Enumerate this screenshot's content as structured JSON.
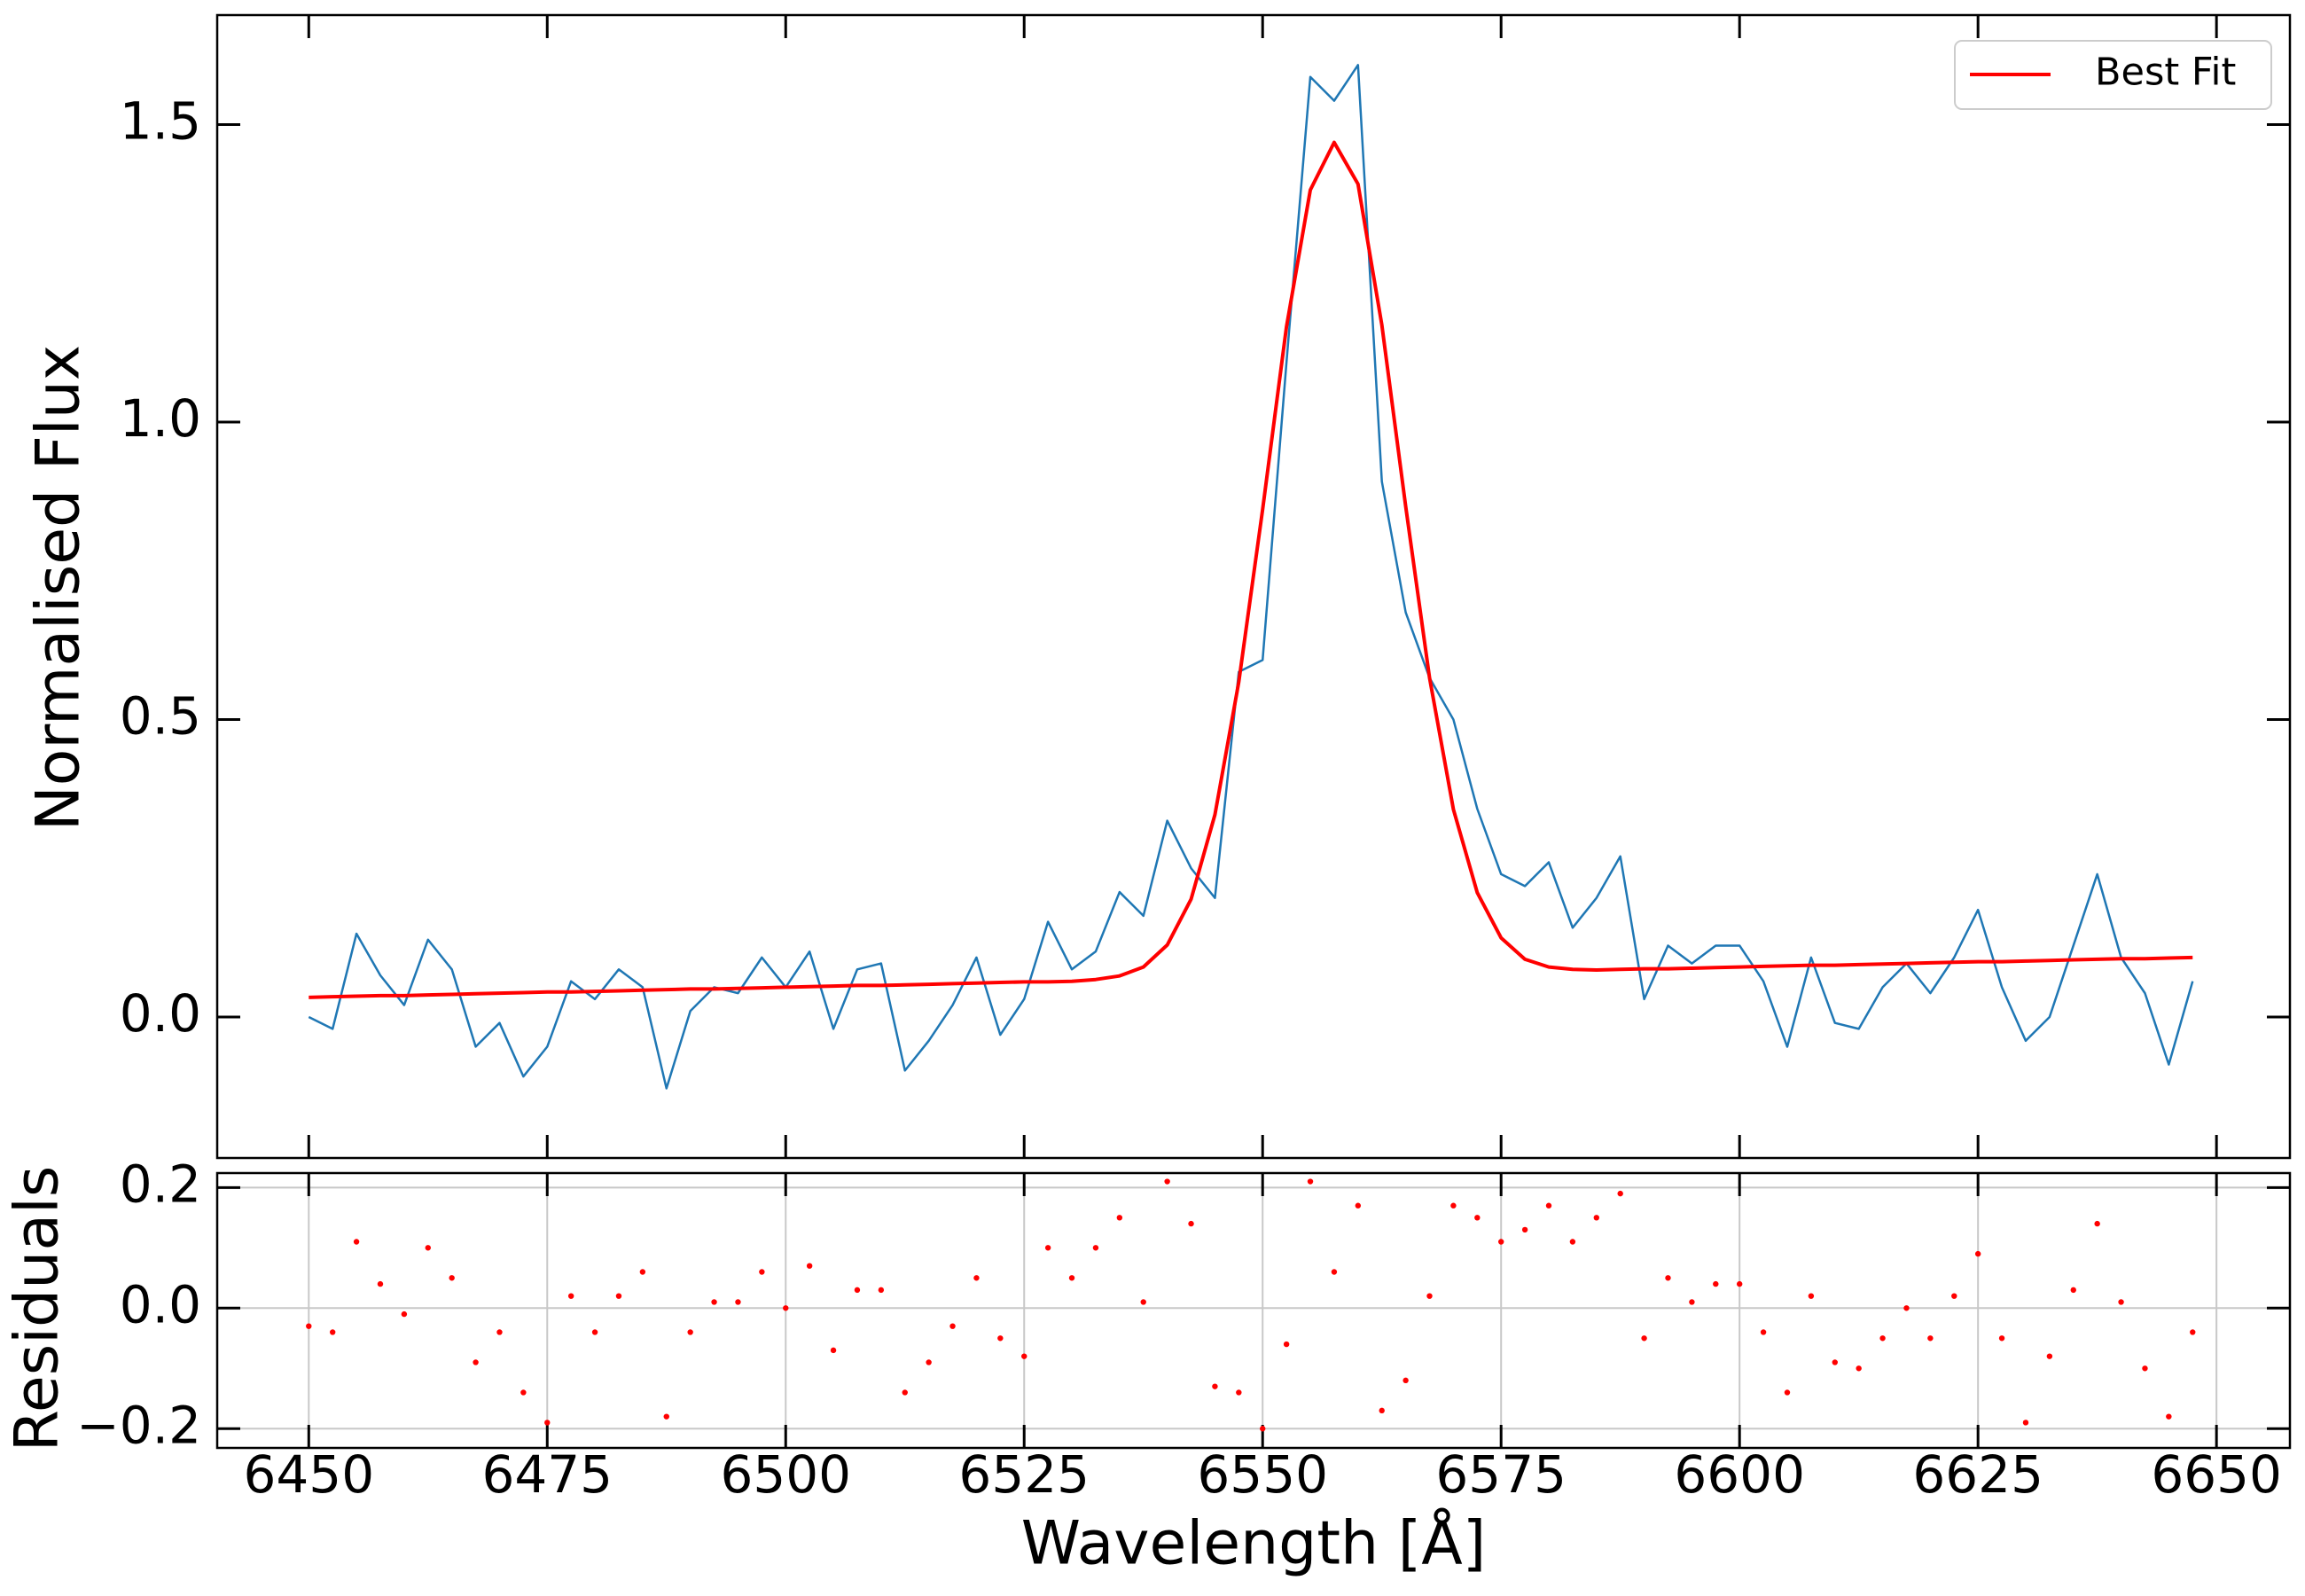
{
  "chart_data": [
    {
      "type": "line",
      "ylabel": "Normalised Flux",
      "x": [
        6450,
        6452.5,
        6455,
        6457.5,
        6460,
        6462.5,
        6465,
        6467.5,
        6470,
        6472.5,
        6475,
        6477.5,
        6480,
        6482.5,
        6485,
        6487.5,
        6490,
        6492.5,
        6495,
        6497.5,
        6500,
        6502.5,
        6505,
        6507.5,
        6510,
        6512.5,
        6515,
        6517.5,
        6520,
        6522.5,
        6525,
        6527.5,
        6530,
        6532.5,
        6535,
        6537.5,
        6540,
        6542.5,
        6545,
        6547.5,
        6550,
        6552.5,
        6555,
        6557.5,
        6560,
        6562.5,
        6565,
        6567.5,
        6570,
        6572.5,
        6575,
        6577.5,
        6580,
        6582.5,
        6585,
        6587.5,
        6590,
        6592.5,
        6595,
        6597.5,
        6600,
        6602.5,
        6605,
        6607.5,
        6610,
        6612.5,
        6615,
        6617.5,
        6620,
        6622.5,
        6625,
        6627.5,
        6630,
        6632.5,
        6635,
        6637.5,
        6640,
        6642.5,
        6645,
        6647.5
      ],
      "series": [
        {
          "color": "#1f77b4",
          "values": [
            0.0,
            -0.02,
            0.14,
            0.07,
            0.02,
            0.13,
            0.08,
            -0.05,
            -0.01,
            -0.1,
            -0.05,
            0.06,
            0.03,
            0.08,
            0.05,
            -0.12,
            0.01,
            0.05,
            0.04,
            0.1,
            0.05,
            0.11,
            -0.02,
            0.08,
            0.09,
            -0.09,
            -0.04,
            0.02,
            0.1,
            -0.03,
            0.03,
            0.16,
            0.08,
            0.11,
            0.21,
            0.17,
            0.33,
            0.25,
            0.2,
            0.58,
            0.6,
            1.1,
            1.58,
            1.54,
            1.6,
            0.9,
            0.68,
            0.57,
            0.5,
            0.35,
            0.24,
            0.22,
            0.26,
            0.15,
            0.2,
            0.27,
            0.03,
            0.12,
            0.09,
            0.12,
            0.12,
            0.06,
            -0.05,
            0.1,
            -0.01,
            -0.02,
            0.05,
            0.09,
            0.04,
            0.1,
            0.18,
            0.05,
            -0.04,
            0.0,
            0.12,
            0.24,
            0.1,
            0.04,
            -0.08,
            0.06
          ]
        },
        {
          "name": "Best Fit",
          "color": "#ff0000",
          "values": [
            0.033,
            0.034,
            0.035,
            0.036,
            0.036,
            0.037,
            0.038,
            0.039,
            0.04,
            0.041,
            0.042,
            0.042,
            0.043,
            0.044,
            0.045,
            0.046,
            0.047,
            0.047,
            0.048,
            0.049,
            0.05,
            0.051,
            0.052,
            0.053,
            0.053,
            0.054,
            0.055,
            0.056,
            0.057,
            0.058,
            0.059,
            0.059,
            0.06,
            0.063,
            0.069,
            0.084,
            0.121,
            0.198,
            0.34,
            0.563,
            0.853,
            1.16,
            1.39,
            1.47,
            1.4,
            1.163,
            0.858,
            0.57,
            0.349,
            0.209,
            0.133,
            0.097,
            0.084,
            0.08,
            0.079,
            0.08,
            0.081,
            0.081,
            0.082,
            0.083,
            0.084,
            0.085,
            0.086,
            0.087,
            0.087,
            0.088,
            0.089,
            0.09,
            0.091,
            0.092,
            0.093,
            0.093,
            0.094,
            0.095,
            0.096,
            0.097,
            0.098,
            0.098,
            0.099,
            0.1
          ]
        }
      ],
      "xlim": [
        6440.4,
        6657.7
      ],
      "ylim": [
        -0.237,
        1.684
      ],
      "yticks": [
        {
          "value": 0,
          "label": "0.0"
        },
        0.5,
        {
          "value": 1,
          "label": "1.0"
        },
        1.5
      ],
      "legend": "upper right"
    },
    {
      "type": "scatter",
      "xlabel": "Wavelength [Å]",
      "ylabel": "Residuals",
      "x": [
        6450,
        6452.5,
        6455,
        6457.5,
        6460,
        6462.5,
        6465,
        6467.5,
        6470,
        6472.5,
        6475,
        6477.5,
        6480,
        6482.5,
        6485,
        6487.5,
        6490,
        6492.5,
        6495,
        6497.5,
        6500,
        6502.5,
        6505,
        6507.5,
        6510,
        6512.5,
        6515,
        6517.5,
        6520,
        6522.5,
        6525,
        6527.5,
        6530,
        6532.5,
        6535,
        6537.5,
        6540,
        6542.5,
        6545,
        6547.5,
        6550,
        6552.5,
        6555,
        6557.5,
        6560,
        6562.5,
        6565,
        6567.5,
        6570,
        6572.5,
        6575,
        6577.5,
        6580,
        6582.5,
        6585,
        6587.5,
        6590,
        6592.5,
        6595,
        6597.5,
        6600,
        6602.5,
        6605,
        6607.5,
        6610,
        6612.5,
        6615,
        6617.5,
        6620,
        6622.5,
        6625,
        6627.5,
        6630,
        6632.5,
        6635,
        6637.5,
        6640,
        6642.5,
        6645,
        6647.5
      ],
      "series": [
        {
          "color": "#ff0000",
          "values": [
            -0.03,
            -0.04,
            0.11,
            0.04,
            -0.01,
            0.1,
            0.05,
            -0.09,
            -0.04,
            -0.14,
            -0.19,
            0.02,
            -0.04,
            0.02,
            0.06,
            -0.18,
            -0.04,
            0.01,
            0.01,
            0.06,
            0.0,
            0.07,
            -0.07,
            0.03,
            0.03,
            -0.14,
            -0.09,
            -0.03,
            0.05,
            -0.05,
            -0.08,
            0.1,
            0.05,
            0.1,
            0.15,
            0.01,
            0.21,
            0.14,
            -0.13,
            -0.14,
            -0.2,
            -0.06,
            0.21,
            0.06,
            0.17,
            -0.17,
            -0.12,
            0.02,
            0.17,
            0.15,
            0.11,
            0.13,
            0.17,
            0.11,
            0.15,
            0.19,
            -0.05,
            0.05,
            0.01,
            0.04,
            0.04,
            -0.04,
            -0.14,
            0.02,
            -0.09,
            -0.1,
            -0.05,
            0.0,
            -0.05,
            0.02,
            0.09,
            -0.05,
            -0.19,
            -0.08,
            0.03,
            0.14,
            0.01,
            -0.1,
            -0.18,
            -0.04
          ]
        }
      ],
      "xlim": [
        6440.4,
        6657.7
      ],
      "ylim": [
        -0.232,
        0.224
      ],
      "xticks": [
        6450,
        6475,
        6500,
        6525,
        6550,
        6575,
        6600,
        6625,
        6650
      ],
      "yticks": [
        {
          "value": -0.2,
          "label": "−0.2"
        },
        {
          "value": 0,
          "label": "0.0"
        },
        0.2
      ],
      "grid": true
    }
  ]
}
